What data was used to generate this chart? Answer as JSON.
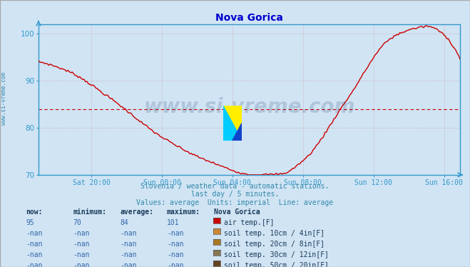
{
  "title": "Nova Gorica",
  "title_color": "#0000cc",
  "bg_color": "#d0e4f4",
  "plot_bg_color": "#d0e4f4",
  "line_color": "#cc0000",
  "line_width": 1.0,
  "avg_line_value": 84,
  "avg_line_color": "#cc0000",
  "ylim": [
    70,
    102
  ],
  "yticks": [
    70,
    80,
    90,
    100
  ],
  "xtick_labels": [
    "Sat 20:00",
    "Sun 00:00",
    "Sun 04:00",
    "Sun 08:00",
    "Sun 12:00",
    "Sun 16:00"
  ],
  "grid_color": "#cc9999",
  "axis_color": "#3399cc",
  "tick_color": "#3399cc",
  "watermark": "www.si-vreme.com",
  "watermark_color": "#1a3a6a",
  "watermark_alpha": 0.18,
  "subtitle1": "Slovenia / weather data - automatic stations.",
  "subtitle2": "last day / 5 minutes.",
  "subtitle3": "Values: average  Units: imperial  Line: average",
  "subtitle_color": "#3388aa",
  "table_header": [
    "now:",
    "minimum:",
    "average:",
    "maximum:",
    "Nova Gorica"
  ],
  "table_row1": [
    "95",
    "70",
    "84",
    "101",
    "air temp.[F]"
  ],
  "table_row2": [
    "-nan",
    "-nan",
    "-nan",
    "-nan",
    "soil temp. 10cm / 4in[F]"
  ],
  "table_row3": [
    "-nan",
    "-nan",
    "-nan",
    "-nan",
    "soil temp. 20cm / 8in[F]"
  ],
  "table_row4": [
    "-nan",
    "-nan",
    "-nan",
    "-nan",
    "soil temp. 30cm / 12in[F]"
  ],
  "table_row5": [
    "-nan",
    "-nan",
    "-nan",
    "-nan",
    "soil temp. 50cm / 20in[F]"
  ],
  "legend_colors": [
    "#cc0000",
    "#cc8833",
    "#aa7722",
    "#887755",
    "#664422"
  ],
  "sidebar_text": "www.si-vreme.com",
  "sidebar_color": "#3388aa",
  "border_color": "#aaaaaa"
}
